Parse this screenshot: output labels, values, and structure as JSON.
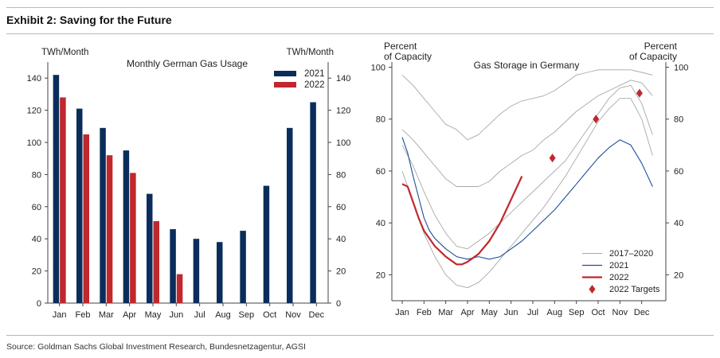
{
  "exhibit_title": "Exhibit 2: Saving for the Future",
  "source": "Source: Goldman Sachs Global Investment Research, Bundesnetzagentur, AGSI",
  "colors": {
    "navy": "#0b2d5b",
    "red": "#c0282d",
    "blue": "#1f4e9c",
    "grey": "#a8a8a8",
    "axis": "#444444"
  },
  "chart_data": [
    {
      "type": "bar",
      "title": "Monthly German Gas Usage",
      "ylabel_left": "TWh/Month",
      "ylabel_right": "TWh/Month",
      "ylim": [
        0,
        150
      ],
      "yticks": [
        0,
        20,
        40,
        60,
        80,
        100,
        120,
        140
      ],
      "categories": [
        "Jan",
        "Feb",
        "Mar",
        "Apr",
        "May",
        "Jun",
        "Jul",
        "Aug",
        "Sep",
        "Oct",
        "Nov",
        "Dec"
      ],
      "series": [
        {
          "name": "2021",
          "color": "#0b2d5b",
          "values": [
            142,
            121,
            109,
            95,
            68,
            46,
            40,
            38,
            45,
            73,
            109,
            125
          ]
        },
        {
          "name": "2022",
          "color": "#c0282d",
          "values": [
            128,
            105,
            92,
            81,
            51,
            18,
            null,
            null,
            null,
            null,
            null,
            null
          ]
        }
      ],
      "legend": "top-right"
    },
    {
      "type": "line",
      "title": "Gas Storage in Germany",
      "ylabel_left": [
        "Percent",
        "of Capacity"
      ],
      "ylabel_right": [
        "Percent",
        "of Capacity"
      ],
      "ylim": [
        10,
        102
      ],
      "xlim": [
        0,
        12
      ],
      "yticks": [
        20,
        40,
        60,
        80,
        100
      ],
      "xticks": [
        "Jan",
        "Feb",
        "Mar",
        "Apr",
        "May",
        "Jun",
        "Jul",
        "Aug",
        "Sep",
        "Oct",
        "Nov",
        "Dec"
      ],
      "series": [
        {
          "name": "2017–2020",
          "color": "#a8a8a8",
          "x": [
            0,
            0.5,
            1,
            1.5,
            2,
            2.5,
            3,
            3.5,
            4,
            4.5,
            5,
            5.5,
            6,
            6.5,
            7,
            7.5,
            8,
            8.5,
            9,
            9.5,
            10,
            10.5,
            11,
            11.5
          ],
          "y": [
            97,
            93,
            88,
            83,
            78,
            76,
            72,
            74,
            78,
            82,
            85,
            87,
            88,
            89,
            91,
            94,
            97,
            98,
            99,
            99,
            99,
            99,
            98,
            97
          ]
        },
        {
          "name": "2017–2020",
          "color": "#a8a8a8",
          "x": [
            0,
            0.5,
            1,
            1.5,
            2,
            2.5,
            3,
            3.5,
            4,
            4.5,
            5,
            5.5,
            6,
            6.5,
            7,
            7.5,
            8,
            8.5,
            9,
            9.5,
            10,
            10.5,
            11,
            11.5
          ],
          "y": [
            76,
            72,
            67,
            62,
            57,
            54,
            54,
            54,
            56,
            60,
            63,
            66,
            68,
            72,
            75,
            79,
            83,
            86,
            89,
            91,
            93,
            95,
            94,
            89
          ]
        },
        {
          "name": "2017–2020",
          "color": "#a8a8a8",
          "x": [
            0,
            0.5,
            1,
            1.5,
            2,
            2.5,
            3,
            3.5,
            4,
            4.5,
            5,
            5.5,
            6,
            6.5,
            7,
            7.5,
            8,
            8.5,
            9,
            9.5,
            10,
            10.5,
            11,
            11.5
          ],
          "y": [
            70,
            62,
            52,
            43,
            36,
            31,
            30,
            33,
            36,
            40,
            44,
            48,
            52,
            56,
            60,
            64,
            70,
            76,
            82,
            88,
            92,
            93,
            86,
            74
          ]
        },
        {
          "name": "2017–2020",
          "color": "#a8a8a8",
          "x": [
            0,
            0.5,
            1,
            1.5,
            2,
            2.5,
            3,
            3.5,
            4,
            4.5,
            5,
            5.5,
            6,
            6.5,
            7,
            7.5,
            8,
            8.5,
            9,
            9.5,
            10,
            10.5,
            11,
            11.5
          ],
          "y": [
            60,
            48,
            36,
            27,
            20,
            16,
            15,
            17,
            21,
            26,
            31,
            36,
            41,
            46,
            52,
            58,
            65,
            72,
            79,
            84,
            88,
            88,
            80,
            66
          ]
        },
        {
          "name": "2021",
          "color": "#1f4e9c",
          "x": [
            0,
            0.25,
            0.5,
            0.75,
            1,
            1.25,
            1.5,
            2,
            2.5,
            3,
            3.5,
            4,
            4.5,
            5,
            5.5,
            6,
            6.5,
            7,
            7.5,
            8,
            8.5,
            9,
            9.5,
            10,
            10.5,
            11,
            11.5
          ],
          "y": [
            73,
            67,
            58,
            50,
            42,
            37,
            34,
            30,
            27,
            26,
            27,
            26,
            27,
            30,
            33,
            37,
            41,
            45,
            50,
            55,
            60,
            65,
            69,
            72,
            70,
            63,
            54
          ]
        },
        {
          "name": "2022",
          "color": "#c0282d",
          "x": [
            0,
            0.25,
            0.5,
            0.75,
            1,
            1.5,
            2,
            2.5,
            2.75,
            3,
            3.5,
            4,
            4.5,
            5,
            5.5
          ],
          "y": [
            55,
            54,
            48,
            42,
            37,
            31,
            27,
            24,
            24,
            25,
            28,
            33,
            40,
            49,
            58
          ]
        }
      ],
      "targets": {
        "name": "2022 Targets",
        "color": "#c0282d",
        "x": [
          6.9,
          8.9,
          10.9
        ],
        "y": [
          65,
          80,
          90
        ]
      },
      "legend": [
        "2017–2020",
        "2021",
        "2022",
        "2022 Targets"
      ],
      "legend_position": "bottom-right"
    }
  ]
}
